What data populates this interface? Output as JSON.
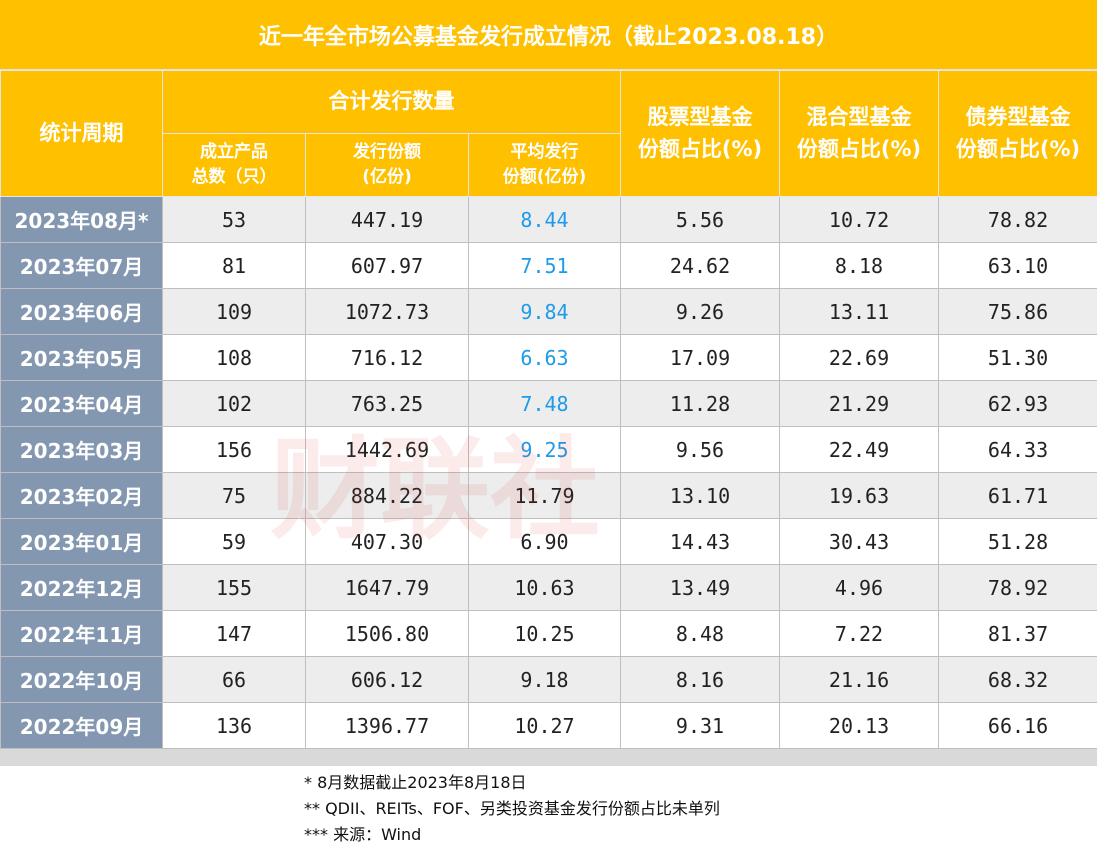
{
  "header": {
    "title": "近一年全市场公募基金发行成立情况（截止2023.08.18）"
  },
  "table": {
    "columns": {
      "period": "统计周期",
      "group": "合计发行数量",
      "count": "成立产品\n总数（只）",
      "amount": "发行份额\n(亿份)",
      "average": "平均发行\n份额(亿份)",
      "stock": "股票型基金\n份额占比(%)",
      "mixed": "混合型基金\n份额占比(%)",
      "bond": "债券型基金\n份额占比(%)"
    },
    "rows": [
      [
        "2023年08月*",
        "53",
        "447.19",
        "8.44",
        "5.56",
        "10.72",
        "78.82"
      ],
      [
        "2023年07月",
        "81",
        "607.97",
        "7.51",
        "24.62",
        "8.18",
        "63.10"
      ],
      [
        "2023年06月",
        "109",
        "1072.73",
        "9.84",
        "9.26",
        "13.11",
        "75.86"
      ],
      [
        "2023年05月",
        "108",
        "716.12",
        "6.63",
        "17.09",
        "22.69",
        "51.30"
      ],
      [
        "2023年04月",
        "102",
        "763.25",
        "7.48",
        "11.28",
        "21.29",
        "62.93"
      ],
      [
        "2023年03月",
        "156",
        "1442.69",
        "9.25",
        "9.56",
        "22.49",
        "64.33"
      ],
      [
        "2023年02月",
        "75",
        "884.22",
        "11.79",
        "13.10",
        "19.63",
        "61.71"
      ],
      [
        "2023年01月",
        "59",
        "407.30",
        "6.90",
        "14.43",
        "30.43",
        "51.28"
      ],
      [
        "2022年12月",
        "155",
        "1647.79",
        "10.63",
        "13.49",
        "4.96",
        "78.92"
      ],
      [
        "2022年11月",
        "147",
        "1506.80",
        "10.25",
        "8.48",
        "7.22",
        "81.37"
      ],
      [
        "2022年10月",
        "66",
        "606.12",
        "9.18",
        "8.16",
        "21.16",
        "68.32"
      ],
      [
        "2022年09月",
        "136",
        "1396.77",
        "10.27",
        "9.31",
        "20.13",
        "66.16"
      ]
    ],
    "highlight_color": "#1e9be8",
    "highlight_rows": [
      0,
      1,
      2,
      3,
      4,
      5
    ]
  },
  "notes": [
    "* 8月数据截止2023年8月18日",
    "** QDII、REITs、FOF、另类投资基金发行份额占比未单列",
    "*** 来源：Wind"
  ],
  "watermark": "财联社"
}
